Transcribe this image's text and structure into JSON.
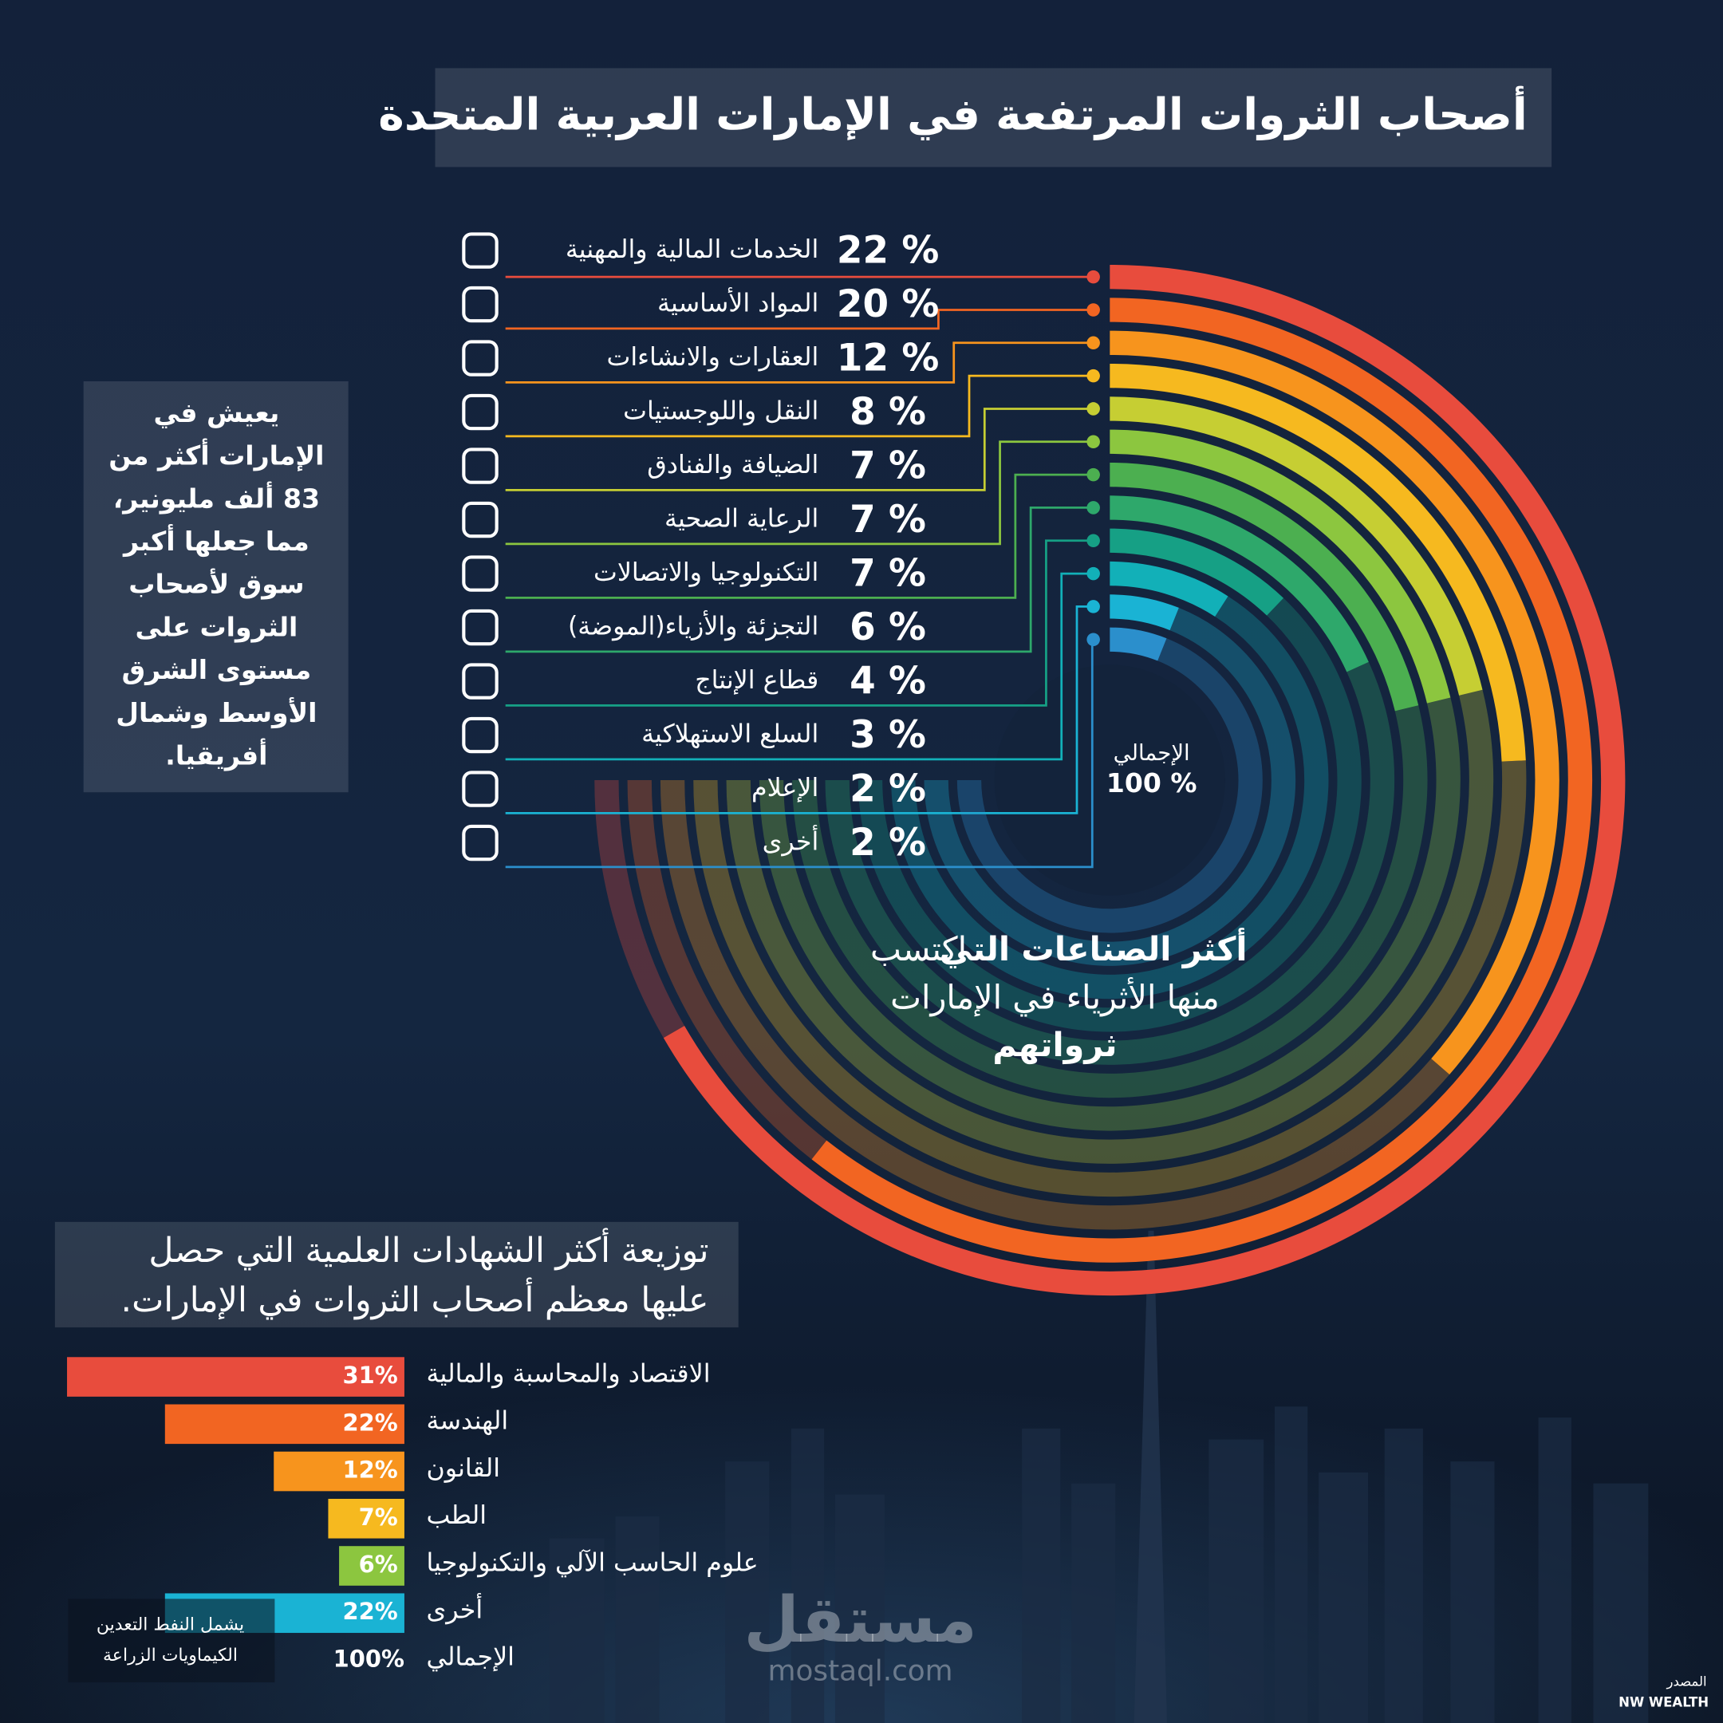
{
  "title": "أصحاب الثروات المرتفعة في الإمارات العربية المتحدة",
  "side_note": [
    "يعيش في",
    "الإمارات أكثر من",
    "83 ألف مليونير،",
    "مما جعلها أكبر",
    "سوق لأصحاب",
    "الثروات على",
    "مستوى الشرق",
    "الأوسط وشمال",
    "أفريقيا."
  ],
  "chart_data": [
    {
      "type": "radial_bar",
      "categories": [
        "الخدمات المالية والمهنية",
        "المواد الأساسية",
        "العقارات والانشاءات",
        "النقل واللوجستيات",
        "الضيافة والفنادق",
        "الرعاية الصحية",
        "التكنولوجيا والاتصالات",
        "التجزئة والأزياء(الموضة)",
        "قطاع الإنتاج",
        "السلع الاستهلاكية",
        "الإعلام",
        "أخرى"
      ],
      "values": [
        22,
        20,
        12,
        8,
        7,
        7,
        7,
        6,
        4,
        3,
        2,
        2
      ],
      "value_labels": [
        "22 %",
        "20 %",
        "12 %",
        "8 %",
        "7 %",
        "7 %",
        "7 %",
        "6 %",
        "4 %",
        "3 %",
        "2 %",
        "2 %"
      ],
      "colors": [
        "#e84c3d",
        "#f26522",
        "#f7941d",
        "#f6b91f",
        "#c6ce33",
        "#8cc63f",
        "#4caf50",
        "#2ea86b",
        "#16a085",
        "#12b0b8",
        "#1ab3d4",
        "#2b8fcc"
      ],
      "center_label": "الإجمالي",
      "total": 100,
      "total_label": "100 %",
      "annotation": {
        "line1_bold": "أكثر الصناعات التي",
        "line1": "اكتسب",
        "line2": "منها الأثرياء في الإمارات",
        "line3_bold": "ثرواتهم"
      }
    },
    {
      "type": "bar",
      "orientation": "horizontal",
      "title": [
        "توزيعة أكثر الشهادات العلمية التي حصل",
        "عليها معظم أصحاب الثروات في الإمارات."
      ],
      "categories": [
        "الاقتصاد والمحاسبة والمالية",
        "الهندسة",
        "القانون",
        "الطب",
        "علوم الحاسب الآلي والتكنولوجيا",
        "أخرى"
      ],
      "values": [
        31,
        22,
        12,
        7,
        6,
        22
      ],
      "value_labels": [
        "31%",
        "22%",
        "12%",
        "7%",
        "6%",
        "22%"
      ],
      "colors": [
        "#e84c3d",
        "#f26522",
        "#f7941d",
        "#f6b91f",
        "#8cc63f",
        "#1ab3d4"
      ],
      "total_name": "الإجمالي",
      "total": 100,
      "total_label": "100%"
    }
  ],
  "footnote": [
    "يشمل النفط  التعدين",
    "الكيماويات الزراعة"
  ],
  "source": {
    "label": "المصدر",
    "name": "NW WEALTH"
  },
  "watermark": {
    "arabic": "مستقل",
    "latin": "mostaql.com"
  }
}
